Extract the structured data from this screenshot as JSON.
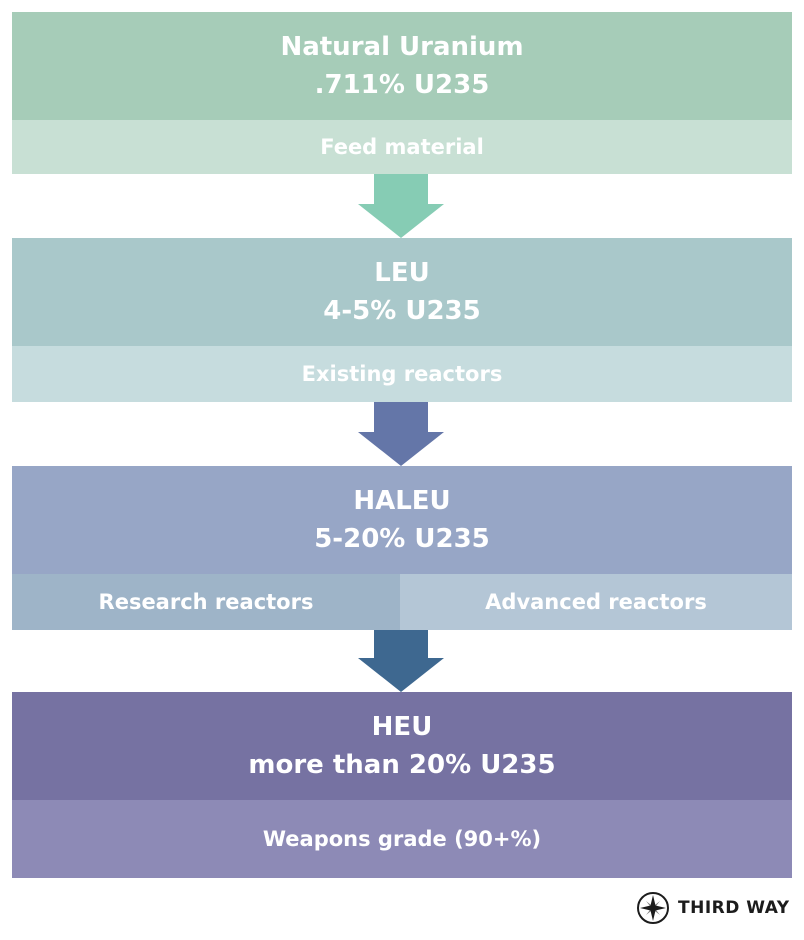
{
  "stages": [
    {
      "title": "Natural Uranium",
      "subtitle": ".711% U235",
      "uses": [
        "Feed material"
      ]
    },
    {
      "title": "LEU",
      "subtitle": "4-5% U235",
      "uses": [
        "Existing reactors"
      ]
    },
    {
      "title": "HALEU",
      "subtitle": "5-20% U235",
      "uses": [
        "Research reactors",
        "Advanced reactors"
      ]
    },
    {
      "title": "HEU",
      "subtitle": "more than 20% U235",
      "uses": [
        "Weapons grade (90+%)"
      ]
    }
  ],
  "brand": {
    "name": "THIRD WAY",
    "logo_icon": "compass-star-icon"
  },
  "colors": {
    "natural_head": "#a6ccb8",
    "natural_sub": "#c8e0d4",
    "arrow_1": "#86ccb4",
    "leu_head": "#a9c8ca",
    "leu_sub": "#c6dcde",
    "arrow_2": "#6476a8",
    "haleu_head": "#97a6c6",
    "haleu_sub_left": "#9eb4c8",
    "haleu_sub_right": "#b4c6d6",
    "arrow_3": "#3e6890",
    "heu_head": "#7672a2",
    "heu_sub": "#8d8ab6"
  }
}
